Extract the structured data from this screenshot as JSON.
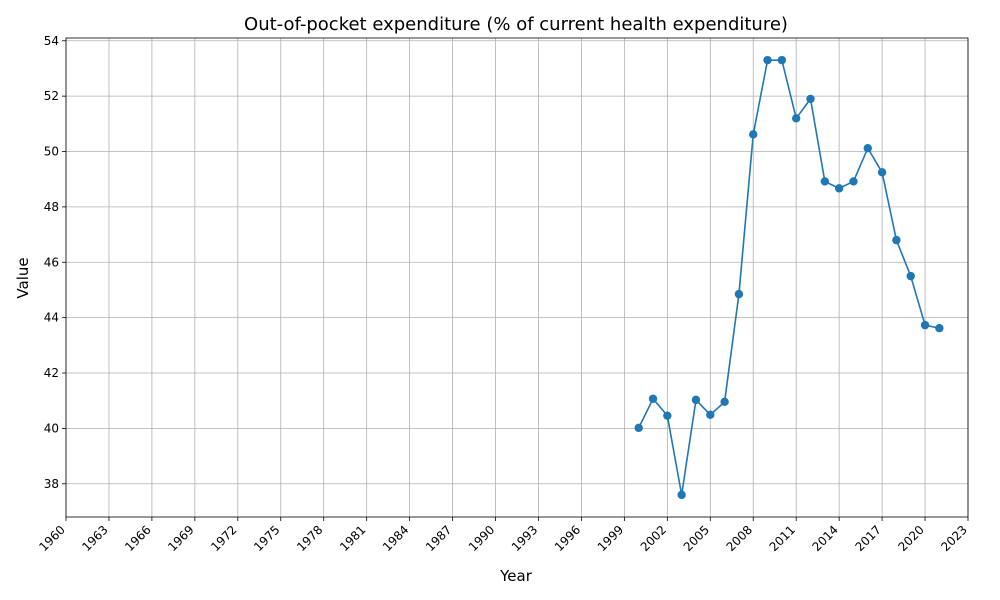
{
  "chart_data": {
    "type": "line",
    "title": "Out-of-pocket expenditure (% of current health expenditure)",
    "xlabel": "Year",
    "ylabel": "Value",
    "xlim": [
      1960,
      2023
    ],
    "ylim": [
      36.8,
      54.1
    ],
    "x_ticks": [
      1960,
      1963,
      1966,
      1969,
      1972,
      1975,
      1978,
      1981,
      1984,
      1987,
      1990,
      1993,
      1996,
      1999,
      2002,
      2005,
      2008,
      2011,
      2014,
      2017,
      2020,
      2023
    ],
    "y_ticks": [
      38,
      40,
      42,
      44,
      46,
      48,
      50,
      52,
      54
    ],
    "grid": true,
    "series": [
      {
        "color": "#1f77b4",
        "marker": "circle",
        "x": [
          2000,
          2001,
          2002,
          2003,
          2004,
          2005,
          2006,
          2007,
          2008,
          2009,
          2010,
          2011,
          2012,
          2013,
          2014,
          2015,
          2016,
          2017,
          2018,
          2019,
          2020,
          2021
        ],
        "values": [
          40.02,
          41.07,
          40.46,
          37.6,
          41.03,
          40.49,
          40.96,
          44.85,
          50.62,
          53.3,
          53.3,
          51.2,
          51.9,
          48.92,
          48.67,
          48.92,
          50.12,
          49.25,
          46.8,
          45.5,
          43.73,
          43.62
        ]
      }
    ]
  }
}
